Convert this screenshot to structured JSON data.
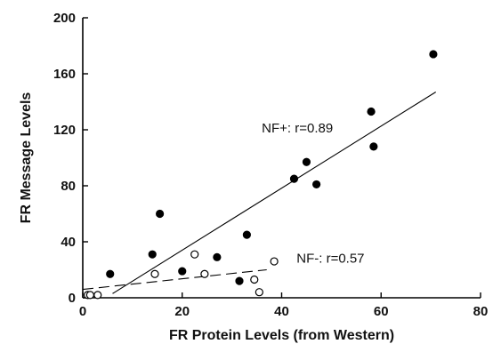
{
  "chart_data": {
    "type": "scatter",
    "title": "",
    "xlabel": "FR Protein Levels (from Western)",
    "ylabel": "FR Message Levels",
    "xlim": [
      0,
      80
    ],
    "ylim": [
      0,
      200
    ],
    "x_ticks": [
      0,
      20,
      40,
      60,
      80
    ],
    "y_ticks": [
      0,
      40,
      80,
      120,
      160,
      200
    ],
    "grid": false,
    "series": [
      {
        "marker": "filled-circle",
        "color": "#000000",
        "points": [
          {
            "x": 5.5,
            "y": 17
          },
          {
            "x": 14,
            "y": 31
          },
          {
            "x": 15.5,
            "y": 60
          },
          {
            "x": 20,
            "y": 19
          },
          {
            "x": 27,
            "y": 29
          },
          {
            "x": 31.5,
            "y": 12
          },
          {
            "x": 33,
            "y": 45
          },
          {
            "x": 42.5,
            "y": 85
          },
          {
            "x": 45,
            "y": 97
          },
          {
            "x": 47,
            "y": 81
          },
          {
            "x": 58,
            "y": 133
          },
          {
            "x": 58.5,
            "y": 108
          },
          {
            "x": 70.5,
            "y": 174
          }
        ],
        "fit": {
          "style": "solid",
          "x": [
            6,
            71
          ],
          "y": [
            3,
            147
          ]
        }
      },
      {
        "marker": "open-circle",
        "color": "#000000",
        "points": [
          {
            "x": 1,
            "y": 2
          },
          {
            "x": 1.5,
            "y": 2
          },
          {
            "x": 3,
            "y": 2
          },
          {
            "x": 14.5,
            "y": 17
          },
          {
            "x": 22.5,
            "y": 31
          },
          {
            "x": 24.5,
            "y": 17
          },
          {
            "x": 34.5,
            "y": 13
          },
          {
            "x": 35.5,
            "y": 4
          },
          {
            "x": 38.5,
            "y": 26
          }
        ],
        "fit": {
          "style": "dashed",
          "x": [
            0,
            37
          ],
          "y": [
            6,
            20
          ]
        }
      }
    ],
    "annotations": [
      {
        "text": "NF+: r=0.89",
        "x": 36,
        "y": 118
      },
      {
        "text": "NF-: r=0.57",
        "x": 43,
        "y": 25
      }
    ]
  }
}
